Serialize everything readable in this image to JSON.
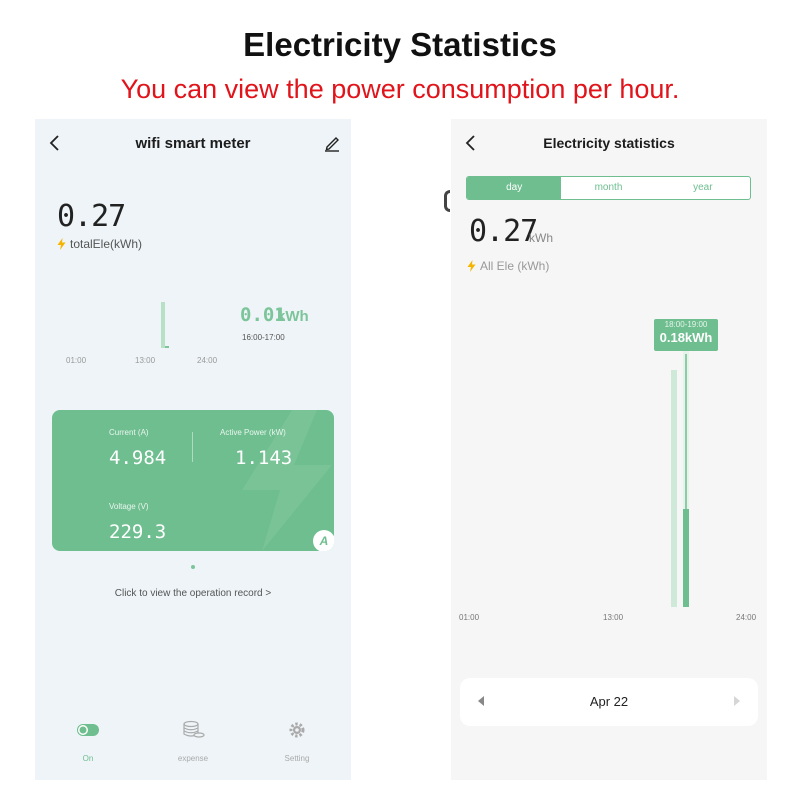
{
  "banner": {
    "title": "Electricity Statistics",
    "subtitle": "You can view the power consumption per hour."
  },
  "left_screen": {
    "title": "wifi smart meter",
    "total_value": "0.27",
    "total_label": "totalEle(kWh)",
    "selected_value": "0.01",
    "selected_unit": "kWh",
    "selected_range": "16:00-17:00",
    "x_ticks": [
      "01:00",
      "13:00",
      "24:00"
    ],
    "card": {
      "current_label": "Current (A)",
      "current_value": "4.984",
      "power_label": "Active Power (kW)",
      "power_value": "1.143",
      "voltage_label": "Voltage (V)",
      "voltage_value": "229.3",
      "badge": "A"
    },
    "link_text": "Click to view the operation record >",
    "tabs": [
      {
        "label": "On",
        "icon": "toggle-icon",
        "active": true
      },
      {
        "label": "expense",
        "icon": "coins-icon",
        "active": false
      },
      {
        "label": "Setting",
        "icon": "gear-icon",
        "active": false
      }
    ]
  },
  "right_screen": {
    "title": "Electricity statistics",
    "segments": [
      "day",
      "month",
      "year"
    ],
    "active_segment": "day",
    "total_value": "0.27",
    "total_unit": "kWh",
    "total_label": "All Ele (kWh)",
    "tooltip_time": "18:00-19:00",
    "tooltip_value": "0.18kWh",
    "x_ticks": [
      "01:00",
      "13:00",
      "24:00"
    ],
    "date_label": "Apr 22"
  },
  "colors": {
    "accent": "#6ebe8f",
    "title_red": "#e0141a",
    "left_bg": "#eef4f7",
    "right_bg": "#f6f6f6"
  },
  "chart_data": [
    {
      "type": "bar",
      "title": "",
      "xlabel": "",
      "ylabel": "",
      "x_ticks": [
        "01:00",
        "13:00",
        "24:00"
      ],
      "categories": [
        "16:00-17:00"
      ],
      "values": [
        0.01
      ],
      "unit": "kWh"
    },
    {
      "type": "bar",
      "title": "",
      "xlabel": "",
      "ylabel": "",
      "x_ticks": [
        "01:00",
        "13:00",
        "24:00"
      ],
      "categories": [
        "18:00-19:00"
      ],
      "values": [
        0.18
      ],
      "unit": "kWh"
    }
  ]
}
